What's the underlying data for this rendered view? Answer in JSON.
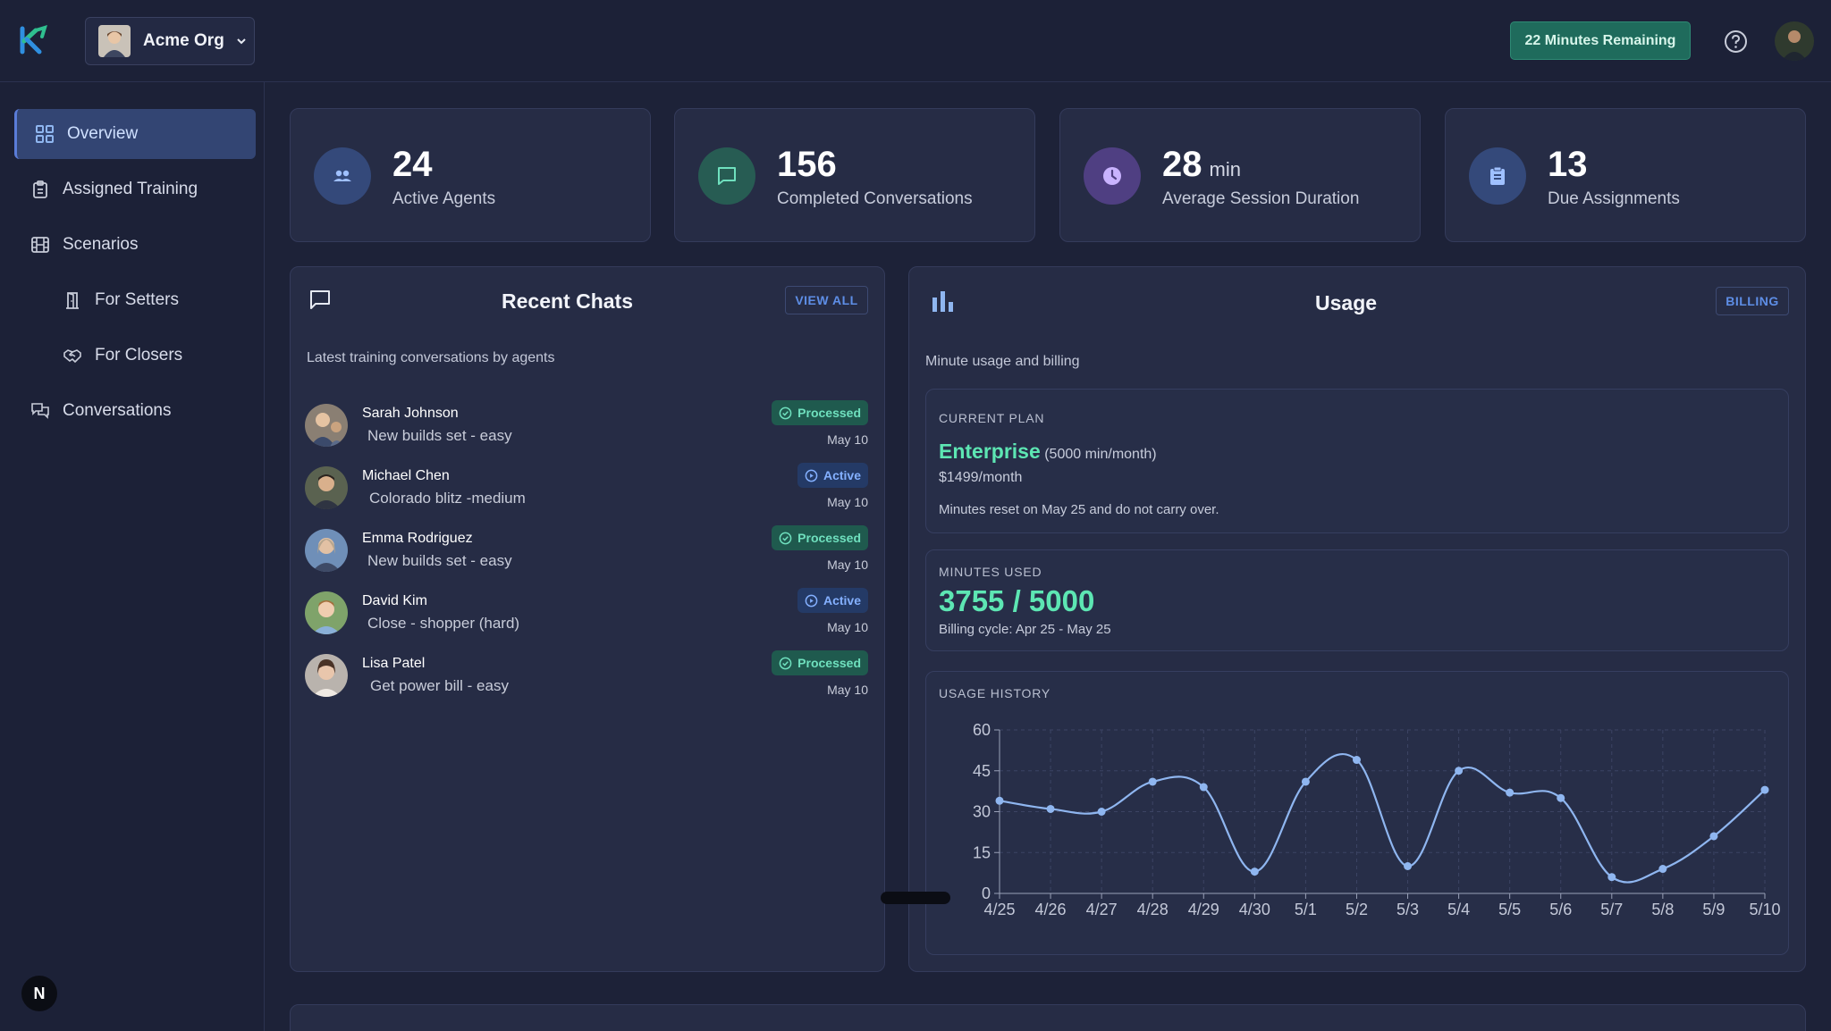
{
  "header": {
    "org_name": "Acme Org",
    "minutes_remaining": "22 Minutes Remaining",
    "icons": {
      "logo": "rk-logo",
      "help": "help-circle-icon",
      "chevron": "chevron-down-icon"
    }
  },
  "sidebar": {
    "items": [
      {
        "label": "Overview",
        "icon": "grid-icon"
      },
      {
        "label": "Assigned Training",
        "icon": "clipboard-icon"
      },
      {
        "label": "Scenarios",
        "icon": "film-icon"
      },
      {
        "label": "For Setters",
        "icon": "door-icon"
      },
      {
        "label": "For Closers",
        "icon": "handshake-icon"
      },
      {
        "label": "Conversations",
        "icon": "chat-bubbles-icon"
      }
    ],
    "bottom_badge": "N"
  },
  "stats": [
    {
      "value": "24",
      "unit": "",
      "label": "Active Agents",
      "icon": "users-icon",
      "color": "#3f5d9a"
    },
    {
      "value": "156",
      "unit": "",
      "label": "Completed Conversations",
      "icon": "message-icon",
      "color": "#2c6a5e"
    },
    {
      "value": "28",
      "unit": "min",
      "label": "Average Session Duration",
      "icon": "clock-icon",
      "color": "#6b4fa6"
    },
    {
      "value": "13",
      "unit": "",
      "label": "Due Assignments",
      "icon": "clipboard-list-icon",
      "color": "#3f5d9a"
    }
  ],
  "recent_chats": {
    "title": "Recent Chats",
    "view_all": "VIEW ALL",
    "subtitle": "Latest training conversations by agents",
    "chats": [
      {
        "name": "Sarah Johnson",
        "scenario": "New builds set - easy",
        "status": "Processed",
        "date": "May 10"
      },
      {
        "name": "Michael Chen",
        "scenario": "Colorado blitz -medium",
        "status": "Active",
        "date": "May 10"
      },
      {
        "name": "Emma Rodriguez",
        "scenario": "New builds set - easy",
        "status": "Processed",
        "date": "May 10"
      },
      {
        "name": "David Kim",
        "scenario": "Close - shopper (hard)",
        "status": "Active",
        "date": "May 10"
      },
      {
        "name": "Lisa Patel",
        "scenario": "Get power bill - easy",
        "status": "Processed",
        "date": "May 10"
      }
    ]
  },
  "usage": {
    "title": "Usage",
    "billing": "BILLING",
    "subtitle": "Minute usage and billing",
    "current_plan_caption": "CURRENT PLAN",
    "plan_name": "Enterprise",
    "plan_minutes": "(5000 min/month)",
    "plan_price": "$1499/month",
    "reset_note": "Minutes reset on May 25 and do not carry over.",
    "minutes_used_caption": "MINUTES USED",
    "minutes_used": "3755 / 5000",
    "billing_cycle": "Billing cycle: Apr 25 - May 25",
    "history_caption": "USAGE HISTORY"
  },
  "chart_data": {
    "type": "line",
    "categories": [
      "4/25",
      "4/26",
      "4/27",
      "4/28",
      "4/29",
      "4/30",
      "5/1",
      "5/2",
      "5/3",
      "5/4",
      "5/5",
      "5/6",
      "5/7",
      "5/8",
      "5/9",
      "5/10"
    ],
    "series": [
      {
        "values": [
          34,
          31,
          30,
          41,
          39,
          8,
          41,
          49,
          10,
          45,
          37,
          35,
          6,
          9,
          21,
          38
        ]
      }
    ],
    "yticks": [
      0,
      15,
      30,
      45,
      60
    ],
    "ylim": [
      0,
      60
    ],
    "grid": true,
    "line_color": "#8fb6f0"
  }
}
